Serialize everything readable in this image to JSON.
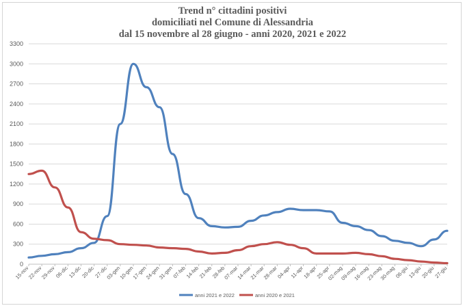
{
  "chart_data": {
    "type": "line",
    "title_lines": [
      "Trend n° cittadini positivi",
      "domiciliati nel Comune di Alessandria",
      "dal 15 novembre al 28 giugno - anni 2020, 2021 e 2022"
    ],
    "ylim": [
      0,
      3300
    ],
    "yticks": [
      0,
      300,
      600,
      900,
      1200,
      1500,
      1800,
      2100,
      2400,
      2700,
      3000,
      3300
    ],
    "grid": "horizontal",
    "legend_position": "bottom",
    "x": [
      "15-nov",
      "22-nov",
      "29-nov",
      "06-dic",
      "13-dic",
      "20-dic",
      "27-dic",
      "03-gen",
      "10-gen",
      "17-gen",
      "24-gen",
      "31-gen",
      "07-feb",
      "14-feb",
      "21-feb",
      "28-feb",
      "07-mar",
      "14-mar",
      "21-mar",
      "28-mar",
      "04-apr",
      "11-apr",
      "18-apr",
      "25-apr",
      "02-mag",
      "09-mag",
      "16-mag",
      "23-mag",
      "30-mag",
      "06-giu",
      "13-giu",
      "20-giu",
      "27-giu"
    ],
    "x_tick_labels": [
      "15-nov",
      "22-nov",
      "29-nov",
      "06-dic",
      "13-dic",
      "20-dic",
      "27-dic",
      "03-gen",
      "10-gen",
      "17-gen",
      "24-gen",
      "31-gen",
      "07-feb",
      "14-feb",
      "21-feb",
      "28-feb",
      "07-mar",
      "14-mar",
      "21-mar",
      "28-mar",
      "04-apr",
      "11-apr",
      "18-apr",
      "25-apr",
      "02-mag",
      "09-mag",
      "16-mag",
      "23-mag",
      "30-mag",
      "06-giu",
      "13-giu",
      "20-giu",
      "27-giu"
    ],
    "series": [
      {
        "name": "anni 2021 e 2022",
        "color": "#4f81bd",
        "values": [
          100,
          125,
          150,
          180,
          240,
          320,
          720,
          2100,
          3000,
          2650,
          2350,
          1650,
          1050,
          690,
          570,
          550,
          560,
          650,
          730,
          780,
          830,
          810,
          810,
          790,
          620,
          570,
          510,
          420,
          350,
          320,
          270,
          370,
          500
        ]
      },
      {
        "name": "anni 2020 e 2021",
        "color": "#c0504d",
        "values": [
          1350,
          1400,
          1150,
          850,
          480,
          380,
          360,
          300,
          290,
          280,
          250,
          240,
          230,
          190,
          160,
          170,
          210,
          270,
          300,
          330,
          290,
          240,
          160,
          160,
          160,
          170,
          150,
          120,
          80,
          60,
          40,
          25,
          15
        ]
      }
    ]
  }
}
